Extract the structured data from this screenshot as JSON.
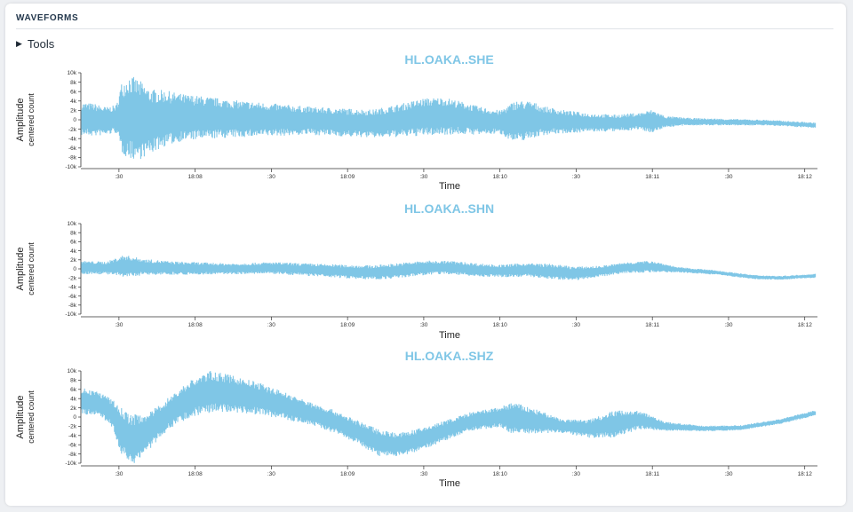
{
  "section": {
    "title": "WAVEFORMS"
  },
  "tools": {
    "label": "Tools",
    "icon": "triangle-right-icon"
  },
  "colors": {
    "waveform": "#7fc6e6",
    "axis": "#333333"
  },
  "chart_data": [
    {
      "type": "line",
      "title": "HL.OAKA..SHE",
      "xlabel": "Time",
      "ylabel": "Amplitude",
      "ylabel2": "centered count",
      "ylim": [
        -10000,
        10000
      ],
      "yticks": [
        10000,
        8000,
        6000,
        4000,
        2000,
        0,
        -2000,
        -4000,
        -6000,
        -8000,
        -10000
      ],
      "ytick_labels": [
        "10k",
        "8k",
        "6k",
        "4k",
        "2k",
        "0",
        "-2k",
        "-4k",
        "-6k",
        "-8k",
        "-10k"
      ],
      "xlim": [
        "18:07:15",
        "18:12:05"
      ],
      "xtick_labels": [
        ":30",
        "18:08",
        ":30",
        "18:09",
        ":30",
        "18:10",
        ":30",
        "18:11",
        ":30",
        "18:12"
      ],
      "xtick_times": [
        "18:07:30",
        "18:08:00",
        "18:08:30",
        "18:09:00",
        "18:09:30",
        "18:10:00",
        "18:10:30",
        "18:11:00",
        "18:11:30",
        "18:12:00"
      ],
      "series": [
        {
          "x": [
            "18:07:15",
            "18:07:20",
            "18:07:25",
            "18:07:29",
            "18:07:31",
            "18:07:34",
            "18:07:38",
            "18:07:42",
            "18:07:48",
            "18:07:55",
            "18:08:05",
            "18:08:15",
            "18:08:30",
            "18:08:45",
            "18:09:00",
            "18:09:10",
            "18:09:20",
            "18:09:30",
            "18:09:38",
            "18:09:45",
            "18:09:52",
            "18:10:00",
            "18:10:06",
            "18:10:12",
            "18:10:18",
            "18:10:25",
            "18:10:35",
            "18:10:45",
            "18:10:55",
            "18:11:00",
            "18:11:05",
            "18:11:15",
            "18:11:30",
            "18:11:45",
            "18:12:05"
          ],
          "center": [
            200,
            0,
            -300,
            200,
            400,
            600,
            0,
            -400,
            300,
            500,
            400,
            200,
            0,
            -200,
            -600,
            -800,
            -200,
            600,
            800,
            400,
            -200,
            -500,
            -400,
            0,
            -200,
            -400,
            -600,
            -700,
            -300,
            -300,
            -400,
            -400,
            -500,
            -600,
            -1200
          ],
          "envelope": [
            3500,
            3500,
            3000,
            3000,
            7500,
            9000,
            8500,
            7000,
            6000,
            5000,
            4500,
            4000,
            3500,
            3000,
            3000,
            3000,
            3500,
            4000,
            4000,
            3500,
            3000,
            2500,
            4500,
            4000,
            3000,
            2500,
            2000,
            1800,
            1800,
            2500,
            1200,
            800,
            700,
            600,
            600
          ]
        }
      ]
    },
    {
      "type": "line",
      "title": "HL.OAKA..SHN",
      "xlabel": "Time",
      "ylabel": "Amplitude",
      "ylabel2": "centered count",
      "ylim": [
        -10000,
        10000
      ],
      "yticks": [
        10000,
        8000,
        6000,
        4000,
        2000,
        0,
        -2000,
        -4000,
        -6000,
        -8000,
        -10000
      ],
      "ytick_labels": [
        "10k",
        "8k",
        "6k",
        "4k",
        "2k",
        "0",
        "-2k",
        "-4k",
        "-6k",
        "-8k",
        "-10k"
      ],
      "xlim": [
        "18:07:15",
        "18:12:05"
      ],
      "xtick_labels": [
        ":30",
        "18:08",
        ":30",
        "18:09",
        ":30",
        "18:10",
        ":30",
        "18:11",
        ":30",
        "18:12"
      ],
      "xtick_times": [
        "18:07:30",
        "18:08:00",
        "18:08:30",
        "18:09:00",
        "18:09:30",
        "18:10:00",
        "18:10:30",
        "18:11:00",
        "18:11:30",
        "18:12:00"
      ],
      "series": [
        {
          "x": [
            "18:07:15",
            "18:07:25",
            "18:07:32",
            "18:07:40",
            "18:07:50",
            "18:08:00",
            "18:08:15",
            "18:08:30",
            "18:08:45",
            "18:09:00",
            "18:09:10",
            "18:09:20",
            "18:09:30",
            "18:09:40",
            "18:09:50",
            "18:10:00",
            "18:10:10",
            "18:10:20",
            "18:10:30",
            "18:10:40",
            "18:10:50",
            "18:11:00",
            "18:11:10",
            "18:11:25",
            "18:11:40",
            "18:11:50",
            "18:12:05"
          ],
          "center": [
            300,
            200,
            600,
            400,
            200,
            100,
            0,
            200,
            -200,
            -600,
            -800,
            -400,
            200,
            300,
            -200,
            -500,
            -200,
            -600,
            -1000,
            -500,
            300,
            500,
            -200,
            -800,
            -1800,
            -2000,
            -1500
          ],
          "envelope": [
            1500,
            1400,
            2500,
            1800,
            1500,
            1400,
            1200,
            1300,
            1400,
            1500,
            1600,
            1700,
            1600,
            1500,
            1500,
            1400,
            1500,
            1700,
            1500,
            1200,
            1200,
            1300,
            600,
            500,
            450,
            450,
            450
          ]
        }
      ]
    },
    {
      "type": "line",
      "title": "HL.OAKA..SHZ",
      "xlabel": "Time",
      "ylabel": "Amplitude",
      "ylabel2": "centered count",
      "ylim": [
        -10000,
        10000
      ],
      "yticks": [
        10000,
        8000,
        6000,
        4000,
        2000,
        0,
        -2000,
        -4000,
        -6000,
        -8000,
        -10000
      ],
      "ytick_labels": [
        "10k",
        "8k",
        "6k",
        "4k",
        "2k",
        "0",
        "-2k",
        "-4k",
        "-6k",
        "-8k",
        "-10k"
      ],
      "xlim": [
        "18:07:15",
        "18:12:05"
      ],
      "xtick_labels": [
        ":30",
        "18:08",
        ":30",
        "18:09",
        ":30",
        "18:10",
        ":30",
        "18:11",
        ":30",
        "18:12"
      ],
      "xtick_times": [
        "18:07:30",
        "18:08:00",
        "18:08:30",
        "18:09:00",
        "18:09:30",
        "18:10:00",
        "18:10:30",
        "18:11:00",
        "18:11:30",
        "18:12:00"
      ],
      "series": [
        {
          "x": [
            "18:07:15",
            "18:07:22",
            "18:07:27",
            "18:07:31",
            "18:07:35",
            "18:07:42",
            "18:07:50",
            "18:07:58",
            "18:08:06",
            "18:08:15",
            "18:08:25",
            "18:08:35",
            "18:08:45",
            "18:08:55",
            "18:09:05",
            "18:09:12",
            "18:09:20",
            "18:09:28",
            "18:09:38",
            "18:09:48",
            "18:10:00",
            "18:10:05",
            "18:10:15",
            "18:10:25",
            "18:10:35",
            "18:10:45",
            "18:10:55",
            "18:11:05",
            "18:11:20",
            "18:11:35",
            "18:11:50",
            "18:12:05"
          ],
          "center": [
            3500,
            3000,
            1000,
            -3000,
            -5000,
            -3000,
            1000,
            4000,
            5500,
            5000,
            4000,
            2500,
            800,
            -1000,
            -3500,
            -5500,
            -6000,
            -5000,
            -3000,
            -1000,
            0,
            -200,
            -1000,
            -2000,
            -2500,
            -1500,
            -600,
            -2000,
            -2500,
            -2300,
            -1000,
            1000
          ],
          "envelope": [
            3000,
            2500,
            3000,
            5000,
            5500,
            4000,
            3500,
            4000,
            4500,
            4000,
            3500,
            3000,
            2500,
            2500,
            2500,
            3000,
            2500,
            2500,
            2200,
            2000,
            2200,
            3500,
            2500,
            1500,
            2000,
            3000,
            2000,
            1000,
            600,
            550,
            550,
            600
          ]
        }
      ]
    }
  ]
}
